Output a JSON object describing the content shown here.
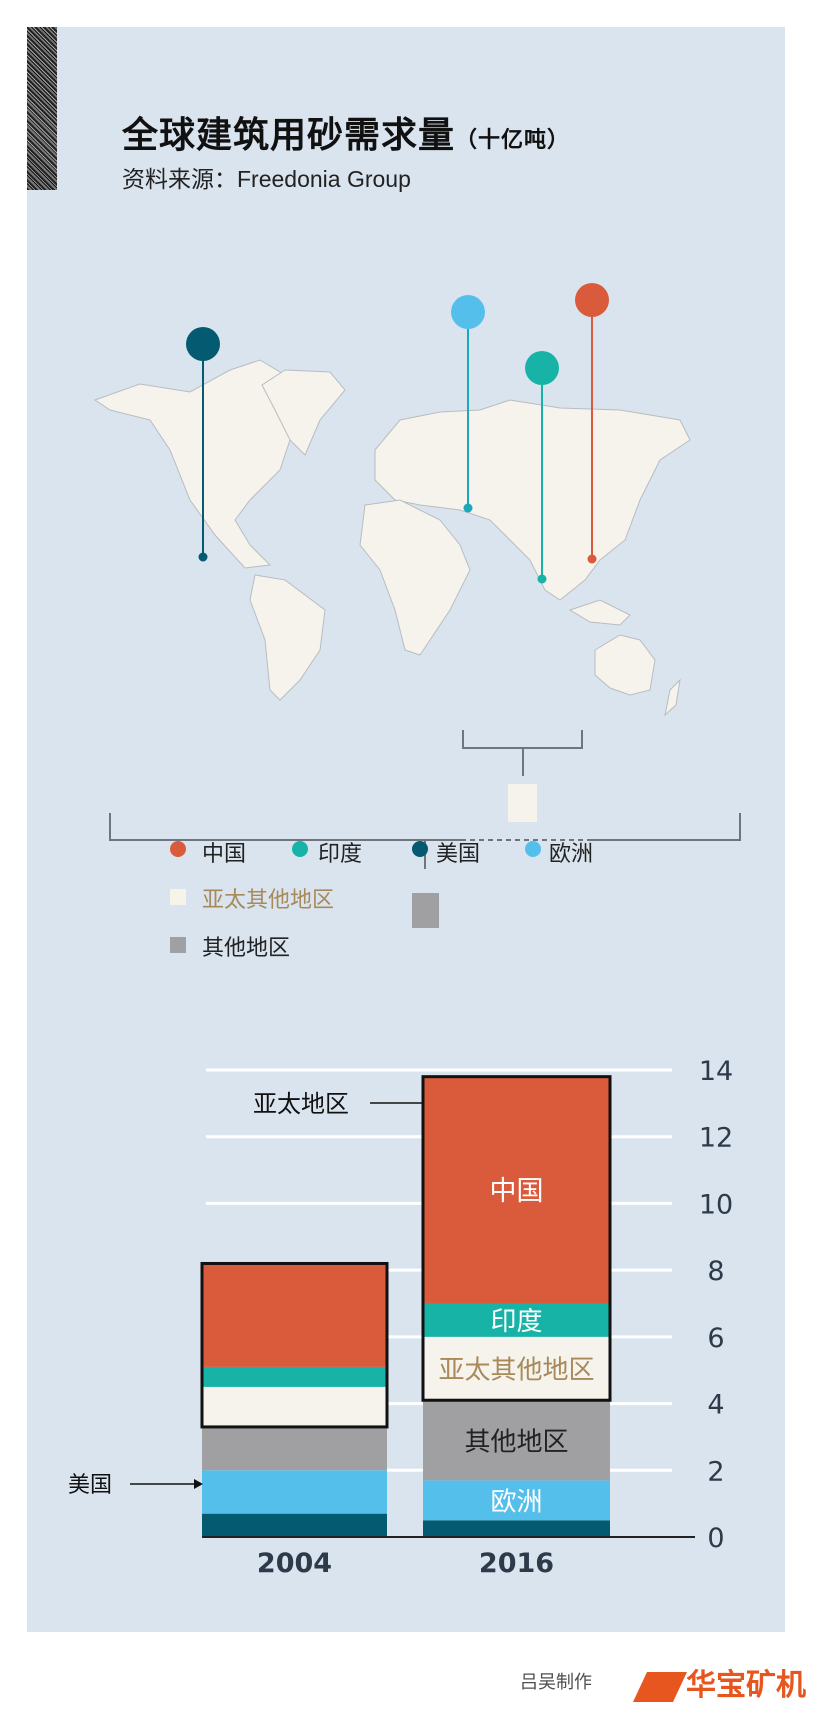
{
  "header": {
    "title": "全球建筑用砂需求量",
    "unit": "（十亿吨）",
    "source": "资料来源：Freedonia Group"
  },
  "colors": {
    "china": "#d95b3c",
    "india": "#17b3a6",
    "usa": "#045a70",
    "europe": "#55bfec",
    "apac_other": "#f5f3ec",
    "other": "#a0a0a2",
    "background": "#dae4ef"
  },
  "legend": [
    {
      "label": "中国",
      "key": "china",
      "shape": "circle"
    },
    {
      "label": "印度",
      "key": "india",
      "shape": "circle"
    },
    {
      "label": "美国",
      "key": "usa",
      "shape": "circle"
    },
    {
      "label": "欧洲",
      "key": "europe",
      "shape": "circle"
    },
    {
      "label": "亚太其他地区",
      "key": "apac_other",
      "shape": "square"
    },
    {
      "label": "其他地区",
      "key": "other",
      "shape": "square"
    }
  ],
  "chart_data": {
    "type": "bar",
    "stacked": true,
    "categories": [
      "2004",
      "2016"
    ],
    "ylim": [
      0,
      14
    ],
    "yticks": [
      0,
      2,
      4,
      6,
      8,
      10,
      12,
      14
    ],
    "grid": true,
    "series": [
      {
        "name": "美国",
        "key": "usa",
        "values": [
          0.7,
          0.5
        ]
      },
      {
        "name": "欧洲",
        "key": "europe",
        "values": [
          1.3,
          1.2
        ]
      },
      {
        "name": "其他地区",
        "key": "other",
        "values": [
          1.3,
          2.4
        ]
      },
      {
        "name": "亚太其他地区",
        "key": "apac_other",
        "values": [
          1.2,
          1.9
        ]
      },
      {
        "name": "印度",
        "key": "india",
        "values": [
          0.6,
          1.0
        ]
      },
      {
        "name": "中国",
        "key": "china",
        "values": [
          3.1,
          6.8
        ]
      }
    ],
    "annotations": {
      "apac": "亚太地区",
      "usa": "美国"
    },
    "segment_labels_2016": {
      "china": "中国",
      "india": "印度",
      "apac_other": "亚太其他地区",
      "other": "其他地区",
      "europe": "欧洲"
    }
  },
  "watermark": {
    "logo_text": "华宝矿机",
    "caption": "吕吴制作"
  }
}
